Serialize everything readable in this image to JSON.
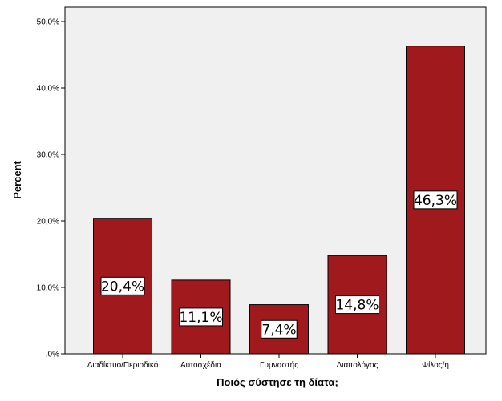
{
  "chart_data": {
    "type": "bar",
    "categories": [
      "Διαδίκτυο/Περιοδικό",
      "Αυτοσχέδια",
      "Γυμναστής",
      "Διαιτολόγος",
      "Φίλος/η"
    ],
    "values": [
      20.4,
      11.1,
      7.4,
      14.8,
      46.3
    ],
    "data_labels": [
      "20,4%",
      "11,1%",
      "7,4%",
      "14,8%",
      "46,3%"
    ],
    "title": "",
    "xlabel": "Ποιός σύστησε τη δίατα;",
    "ylabel": "Percent",
    "ylim": [
      0,
      50
    ],
    "yticks": [
      0,
      10,
      20,
      30,
      40,
      50
    ],
    "ytick_labels": [
      ",0%",
      "10,0%",
      "20,0%",
      "30,0%",
      "40,0%",
      "50,0%"
    ],
    "grid": false,
    "colors": {
      "bar": "#a0191c",
      "plot_background": "#f0f0f0",
      "bar_outline": "#000000"
    }
  }
}
